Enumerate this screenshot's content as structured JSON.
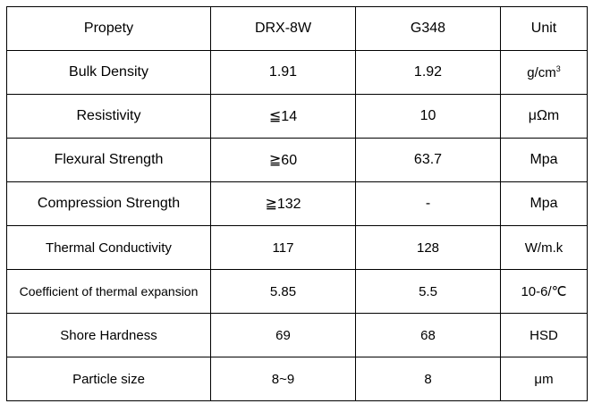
{
  "table": {
    "headers": [
      "Propety",
      "DRX-8W",
      "G348",
      "Unit"
    ],
    "rows": [
      {
        "property": "Bulk Density",
        "drx8w": "1.91",
        "g348": "1.92",
        "unit_base": "g/cm",
        "unit_sup": "3"
      },
      {
        "property": "Resistivity",
        "drx8w": "≦14",
        "g348": "10",
        "unit": "μΩm"
      },
      {
        "property": "Flexural Strength",
        "drx8w": "≧60",
        "g348": "63.7",
        "unit": "Mpa"
      },
      {
        "property": "Compression Strength",
        "drx8w": "≧132",
        "g348": "-",
        "unit": "Mpa"
      },
      {
        "property": "Thermal Conductivity",
        "drx8w": "117",
        "g348": "128",
        "unit": "W/m.k"
      },
      {
        "property": "Coefficient of thermal expansion",
        "drx8w": "5.85",
        "g348": "5.5",
        "unit": "10-6/℃"
      },
      {
        "property": "Shore Hardness",
        "drx8w": "69",
        "g348": "68",
        "unit": "HSD"
      },
      {
        "property": "Particle size",
        "drx8w": "8~9",
        "g348": "8",
        "unit": "μm"
      }
    ]
  }
}
